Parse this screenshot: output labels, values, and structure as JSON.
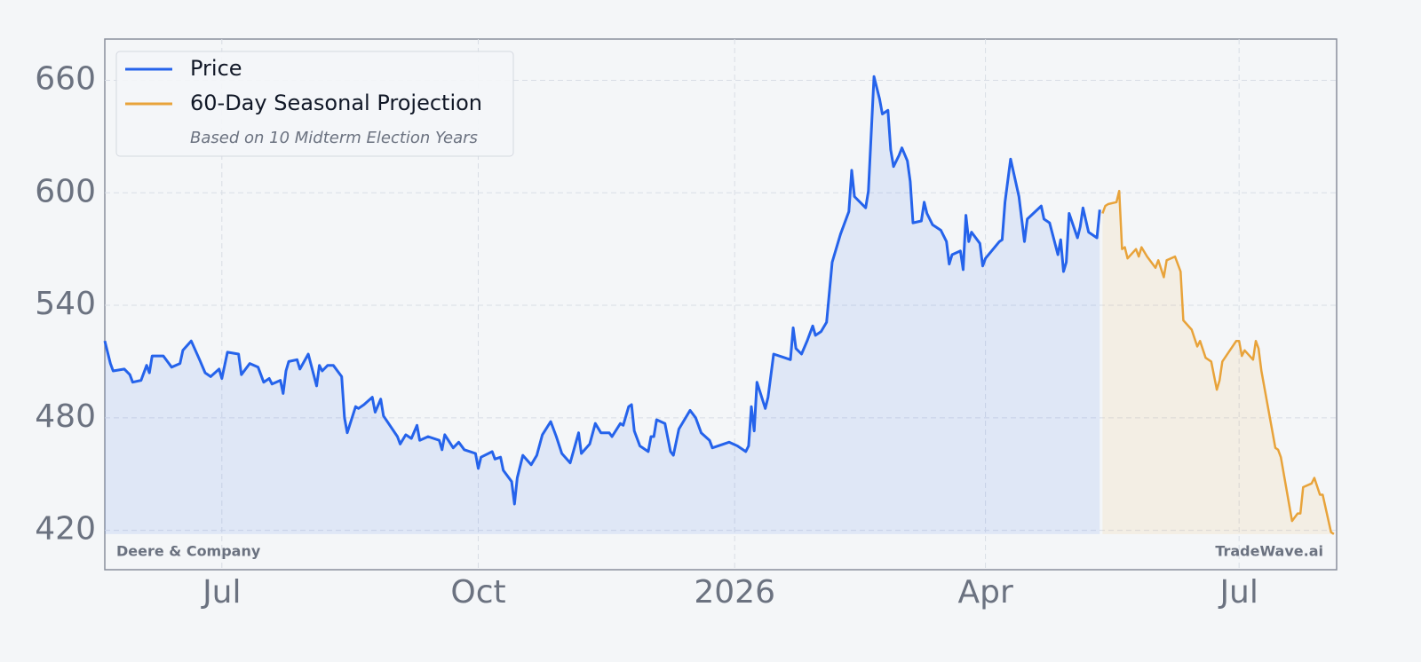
{
  "chart_data": {
    "type": "line",
    "legend_note": "Based on 10 Midterm Election Years",
    "company": "Deere & Company",
    "watermark": "TradeWave.ai",
    "xlim": [
      -226,
      216
    ],
    "ylim": [
      399,
      682
    ],
    "xticks": [
      {
        "value": -184,
        "label": "Jul"
      },
      {
        "value": -92,
        "label": "Oct"
      },
      {
        "value": 0,
        "label": "2026"
      },
      {
        "value": 90,
        "label": "Apr"
      },
      {
        "value": 181,
        "label": "Jul"
      }
    ],
    "yticks": [
      420,
      480,
      540,
      600,
      660
    ],
    "grid": true,
    "legend": "upper left",
    "series": [
      {
        "name": "Price",
        "color": "#2563eb",
        "x": [
          -226,
          -224,
          -223,
          -219,
          -217,
          -216,
          -213,
          -211,
          -210,
          -209,
          -205,
          -203,
          -202,
          -199,
          -198,
          -195,
          -192,
          -190,
          -188,
          -185,
          -184,
          -182,
          -178,
          -177,
          -174,
          -171,
          -169,
          -167,
          -166,
          -163,
          -162,
          -161,
          -160,
          -157,
          -156,
          -153,
          -150,
          -149,
          -148,
          -146,
          -144,
          -141,
          -140,
          -139,
          -136,
          -135,
          -133,
          -130,
          -129,
          -127,
          -126,
          -121,
          -120,
          -118,
          -116,
          -114,
          -113,
          -110,
          -106,
          -105,
          -104,
          -101,
          -99,
          -97,
          -93,
          -92,
          -91,
          -87,
          -86,
          -84,
          -83,
          -80,
          -79,
          -78,
          -76,
          -73,
          -71,
          -69,
          -66,
          -64,
          -62,
          -59,
          -56,
          -55,
          -52,
          -50,
          -48,
          -45,
          -44,
          -41,
          -40,
          -38,
          -37,
          -36,
          -34,
          -31,
          -30,
          -29,
          -28,
          -25,
          -23,
          -22,
          -20,
          -16,
          -14,
          -12,
          -9,
          -8,
          -2,
          1,
          3,
          4,
          5,
          6,
          7,
          8,
          11,
          12,
          14,
          18,
          20,
          21,
          22,
          24,
          26,
          28,
          29,
          31,
          33,
          35,
          38,
          41,
          42,
          43,
          47,
          48,
          50,
          52,
          53,
          55,
          56,
          57,
          59,
          60,
          62,
          63,
          64,
          67,
          68,
          69,
          71,
          74,
          76,
          77,
          78,
          81,
          82,
          83,
          84,
          85,
          88,
          89,
          90,
          95,
          96,
          97,
          99,
          102,
          104,
          105,
          110,
          111,
          113,
          116,
          117,
          118,
          119,
          120,
          123,
          124,
          125,
          127,
          130,
          131
        ],
        "values": [
          521,
          509,
          505,
          506,
          503,
          499,
          500,
          508,
          504,
          513,
          513,
          509,
          507,
          509,
          516,
          521,
          511,
          504,
          502,
          506,
          501,
          515,
          514,
          503,
          509,
          507,
          499,
          501,
          498,
          500,
          493,
          505,
          510,
          511,
          506,
          514,
          497,
          508,
          505,
          508,
          508,
          502,
          480,
          472,
          486,
          485,
          487,
          491,
          483,
          490,
          481,
          470,
          466,
          471,
          469,
          476,
          468,
          470,
          468,
          463,
          471,
          464,
          467,
          463,
          461,
          453,
          459,
          462,
          458,
          459,
          452,
          446,
          434,
          448,
          460,
          455,
          460,
          471,
          478,
          470,
          461,
          456,
          472,
          461,
          466,
          477,
          472,
          472,
          470,
          477,
          476,
          486,
          487,
          473,
          465,
          462,
          470,
          470,
          479,
          477,
          462,
          460,
          474,
          484,
          480,
          472,
          468,
          464,
          467,
          465,
          463,
          462,
          465,
          486,
          473,
          499,
          485,
          491,
          514,
          512,
          511,
          528,
          517,
          514,
          521,
          529,
          524,
          526,
          531,
          563,
          578,
          590,
          612,
          598,
          592,
          601,
          662,
          650,
          642,
          644,
          623,
          614,
          620,
          624,
          617,
          606,
          584,
          585,
          595,
          589,
          583,
          580,
          574,
          562,
          567,
          569,
          559,
          588,
          574,
          579,
          573,
          561,
          565,
          574,
          575,
          595,
          618,
          598,
          574,
          586,
          593,
          586,
          584,
          567,
          575,
          558,
          563,
          589,
          576,
          582,
          592,
          579,
          576,
          591
        ]
      },
      {
        "name": "60-Day Seasonal Projection",
        "color": "#e8a33a",
        "x": [
          132,
          133,
          134,
          137,
          138,
          139,
          140,
          141,
          144,
          145,
          146,
          148,
          151,
          152,
          154,
          155,
          158,
          160,
          161,
          164,
          166,
          167,
          169,
          171,
          173,
          174,
          175,
          180,
          181,
          182,
          183,
          186,
          187,
          188,
          189,
          194,
          195,
          196,
          200,
          202,
          203,
          204,
          207,
          208,
          210,
          211,
          214,
          215
        ],
        "values": [
          589,
          593,
          594,
          595,
          601,
          570,
          571,
          565,
          570,
          566,
          571,
          566,
          560,
          564,
          555,
          564,
          566,
          558,
          532,
          527,
          518,
          521,
          512,
          510,
          495,
          500,
          510,
          521,
          521,
          513,
          516,
          511,
          521,
          517,
          505,
          464,
          463,
          459,
          425,
          429,
          429,
          443,
          445,
          448,
          439,
          439,
          419,
          418
        ]
      }
    ]
  }
}
